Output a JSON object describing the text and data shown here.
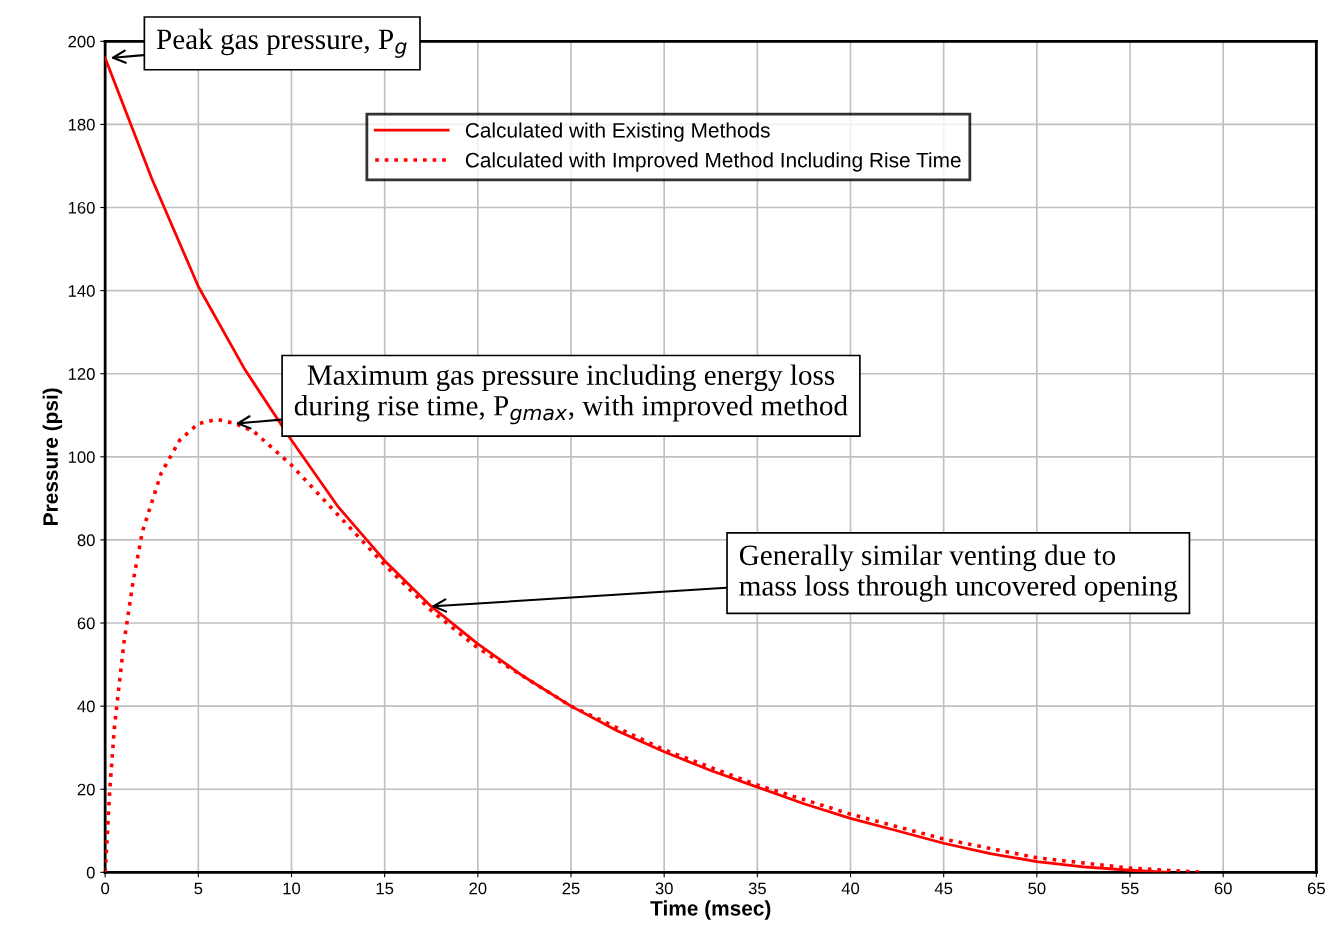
{
  "chart_data": {
    "type": "line",
    "xlabel": "Time (msec)",
    "ylabel": "Pressure (psi)",
    "xlim": [
      0,
      65
    ],
    "xticks": [
      0,
      5,
      10,
      15,
      20,
      25,
      30,
      35,
      40,
      45,
      50,
      55,
      60,
      65
    ],
    "ylim": [
      0,
      200
    ],
    "yticks": [
      0,
      20,
      40,
      60,
      80,
      100,
      120,
      140,
      160,
      180,
      200
    ],
    "grid": true,
    "legend": "top",
    "marker": "none",
    "series": [
      {
        "name": "Calculated with Existing Methods",
        "color": "#ff0000",
        "line_style": "solid",
        "x": [
          0,
          2.5,
          5,
          7.5,
          10,
          12.5,
          15,
          17.5,
          20,
          22.5,
          25,
          27.5,
          30,
          32.5,
          35,
          37.5,
          40,
          42.5,
          45,
          47.5,
          50,
          52.5,
          55,
          57
        ],
        "values": [
          196,
          167,
          141,
          121,
          104,
          88,
          75,
          64,
          55,
          47,
          40,
          34,
          29,
          24.5,
          20.5,
          16.5,
          13,
          10,
          7,
          4.5,
          2.6,
          1.3,
          0.5,
          0
        ]
      },
      {
        "name": "Calculated with Improved Method Including Rise Time",
        "color": "#ff0000",
        "line_style": "dotted",
        "x": [
          0,
          0.25,
          0.5,
          1,
          1.5,
          2,
          3,
          4,
          5,
          6,
          7,
          8,
          10,
          12.5,
          15,
          17.5,
          20,
          25,
          30,
          35,
          40,
          45,
          50,
          55,
          59
        ],
        "values": [
          0,
          20,
          35,
          55,
          70,
          82,
          96,
          104,
          108,
          109,
          108,
          106,
          98,
          86,
          74,
          63,
          54,
          40,
          29.5,
          21,
          14,
          8,
          3.5,
          1,
          0
        ]
      }
    ],
    "annotations": [
      {
        "text": "Peak gas pressure, P$_{g}$",
        "x": 0.3,
        "y": 196
      },
      {
        "text": "Maximum gas pressure including energy loss\nduring rise time, P$_{gmax}$, with improved method",
        "x": 7,
        "y": 108
      },
      {
        "text": "Generally similar venting due to\nmass loss through uncovered opening",
        "x": 17.5,
        "y": 64
      }
    ]
  }
}
